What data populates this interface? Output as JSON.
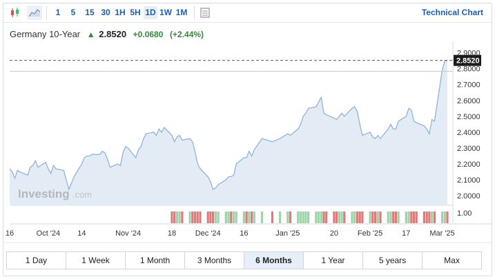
{
  "toolbar": {
    "intervals": [
      "1",
      "5",
      "15",
      "30",
      "1H",
      "5H",
      "1D",
      "1W",
      "1M"
    ],
    "active_interval": "1D",
    "technical_chart_label": "Technical Chart",
    "icons": [
      "candlestick-chart-icon",
      "area-chart-icon",
      "settings-panel-icon"
    ]
  },
  "header": {
    "instrument": "Germany 10-Year",
    "price": "2.8520",
    "change": "+0.0680",
    "change_pct": "(+2.44%)"
  },
  "watermark": {
    "brand": "Investing",
    "suffix": ".com"
  },
  "price_tag": "2.8520",
  "colors": {
    "line": "#8fb3d9",
    "area": "#e3ebf5",
    "up": "#2e8b3a",
    "link": "#1a5fb4",
    "vol_up": "#9fd3a8",
    "vol_down": "#e07a7a",
    "prev_close": "#f0b0b0"
  },
  "chart_data": {
    "type": "area",
    "x": [
      "2024-09-16",
      "2024-09-17",
      "2024-09-18",
      "2024-09-19",
      "2024-09-20",
      "2024-09-23",
      "2024-09-24",
      "2024-09-25",
      "2024-09-26",
      "2024-09-27",
      "2024-09-30",
      "2024-10-01",
      "2024-10-02",
      "2024-10-03",
      "2024-10-04",
      "2024-10-07",
      "2024-10-08",
      "2024-10-09",
      "2024-10-10",
      "2024-10-11",
      "2024-10-14",
      "2024-10-15",
      "2024-10-16",
      "2024-10-17",
      "2024-10-18",
      "2024-10-21",
      "2024-10-22",
      "2024-10-23",
      "2024-10-24",
      "2024-10-25",
      "2024-10-28",
      "2024-10-29",
      "2024-10-30",
      "2024-10-31",
      "2024-11-01",
      "2024-11-04",
      "2024-11-05",
      "2024-11-06",
      "2024-11-07",
      "2024-11-08",
      "2024-11-11",
      "2024-11-12",
      "2024-11-13",
      "2024-11-14",
      "2024-11-15",
      "2024-11-18",
      "2024-11-19",
      "2024-11-20",
      "2024-11-21",
      "2024-11-22",
      "2024-11-25",
      "2024-11-26",
      "2024-11-27",
      "2024-11-28",
      "2024-11-29",
      "2024-12-02",
      "2024-12-03",
      "2024-12-04",
      "2024-12-05",
      "2024-12-06",
      "2024-12-09",
      "2024-12-10",
      "2024-12-11",
      "2024-12-12",
      "2024-12-13",
      "2024-12-16",
      "2024-12-17",
      "2024-12-18",
      "2024-12-19",
      "2024-12-20",
      "2024-12-23",
      "2024-12-27",
      "2024-12-30",
      "2025-01-02",
      "2025-01-03",
      "2025-01-06",
      "2025-01-07",
      "2025-01-08",
      "2025-01-09",
      "2025-01-10",
      "2025-01-13",
      "2025-01-14",
      "2025-01-15",
      "2025-01-16",
      "2025-01-17",
      "2025-01-20",
      "2025-01-21",
      "2025-01-22",
      "2025-01-23",
      "2025-01-24",
      "2025-01-27",
      "2025-01-28",
      "2025-01-29",
      "2025-01-30",
      "2025-01-31",
      "2025-02-03",
      "2025-02-04",
      "2025-02-05",
      "2025-02-06",
      "2025-02-07",
      "2025-02-10",
      "2025-02-11",
      "2025-02-12",
      "2025-02-13",
      "2025-02-14",
      "2025-02-17",
      "2025-02-18",
      "2025-02-19",
      "2025-02-20",
      "2025-02-21",
      "2025-02-24",
      "2025-02-25",
      "2025-02-26",
      "2025-02-27",
      "2025-02-28",
      "2025-03-03",
      "2025-03-04",
      "2025-03-05"
    ],
    "y": [
      2.17,
      2.15,
      2.11,
      2.16,
      2.15,
      2.13,
      2.18,
      2.19,
      2.22,
      2.18,
      2.21,
      2.17,
      2.14,
      2.19,
      2.17,
      2.16,
      2.1,
      2.04,
      2.08,
      2.12,
      2.2,
      2.24,
      2.25,
      2.25,
      2.26,
      2.26,
      2.28,
      2.27,
      2.23,
      2.18,
      2.2,
      2.19,
      2.27,
      2.31,
      2.3,
      2.24,
      2.29,
      2.31,
      2.36,
      2.39,
      2.4,
      2.38,
      2.42,
      2.4,
      2.43,
      2.38,
      2.34,
      2.37,
      2.38,
      2.35,
      2.36,
      2.34,
      2.28,
      2.2,
      2.17,
      2.12,
      2.09,
      2.04,
      2.05,
      2.07,
      2.1,
      2.12,
      2.12,
      2.13,
      2.2,
      2.24,
      2.24,
      2.28,
      2.25,
      2.29,
      2.36,
      2.34,
      2.36,
      2.39,
      2.38,
      2.42,
      2.45,
      2.5,
      2.52,
      2.55,
      2.56,
      2.59,
      2.62,
      2.52,
      2.51,
      2.49,
      2.48,
      2.5,
      2.52,
      2.5,
      2.55,
      2.56,
      2.53,
      2.45,
      2.38,
      2.4,
      2.37,
      2.36,
      2.38,
      2.36,
      2.42,
      2.45,
      2.42,
      2.42,
      2.47,
      2.5,
      2.55,
      2.54,
      2.47,
      2.46,
      2.44,
      2.42,
      2.39,
      2.48,
      2.47,
      2.79,
      2.85,
      2.85
    ],
    "volume_up": [
      true,
      false,
      false,
      true,
      false,
      false,
      true,
      true,
      true,
      false,
      true,
      false,
      false,
      true,
      false,
      false,
      false,
      false,
      true,
      true,
      true,
      true,
      true,
      false,
      true,
      false,
      true,
      false,
      false,
      false,
      true,
      false,
      true,
      true,
      false,
      false,
      true,
      true,
      true,
      true,
      true,
      false,
      true,
      false,
      true,
      false,
      false,
      true,
      true,
      false,
      true,
      false,
      false,
      false,
      false,
      false,
      false,
      false,
      true,
      true,
      true,
      true,
      false,
      true,
      true,
      true,
      false,
      true,
      false,
      true,
      true,
      false,
      true,
      true,
      false,
      true,
      true,
      true,
      true,
      true,
      true,
      true,
      true,
      false,
      false,
      false,
      false,
      true,
      true,
      false,
      true,
      true,
      false,
      false,
      false,
      true,
      false,
      false,
      true,
      false,
      true,
      true,
      false,
      false,
      true,
      true,
      true,
      false,
      false,
      false,
      false,
      false,
      false,
      true,
      false,
      true,
      true,
      false
    ],
    "xlabels": [
      {
        "text": "16",
        "date": "2024-09-16"
      },
      {
        "text": "Oct '24",
        "date": "2024-10-01"
      },
      {
        "text": "14",
        "date": "2024-10-14"
      },
      {
        "text": "Nov '24",
        "date": "2024-11-01"
      },
      {
        "text": "18",
        "date": "2024-11-18"
      },
      {
        "text": "Dec '24",
        "date": "2024-12-02"
      },
      {
        "text": "16",
        "date": "2024-12-16"
      },
      {
        "text": "Jan '25",
        "date": "2025-01-02"
      },
      {
        "text": "20",
        "date": "2025-01-20"
      },
      {
        "text": "Feb '25",
        "date": "2025-02-03"
      },
      {
        "text": "17",
        "date": "2025-02-17"
      },
      {
        "text": "Mar '25",
        "date": "2025-03-03"
      }
    ],
    "yticks": [
      "2.9000",
      "2.8000",
      "2.7000",
      "2.6000",
      "2.5000",
      "2.4000",
      "2.3000",
      "2.2000",
      "2.1000",
      "2.0000"
    ],
    "ylim": [
      1.94,
      2.92
    ],
    "volume_label": "1.00",
    "last_price": 2.852,
    "prev_close": 2.784,
    "grid": false
  },
  "range_tabs": [
    "1 Day",
    "1 Week",
    "1 Month",
    "3 Months",
    "6 Months",
    "1 Year",
    "5 years",
    "Max"
  ],
  "active_range": "6 Months"
}
